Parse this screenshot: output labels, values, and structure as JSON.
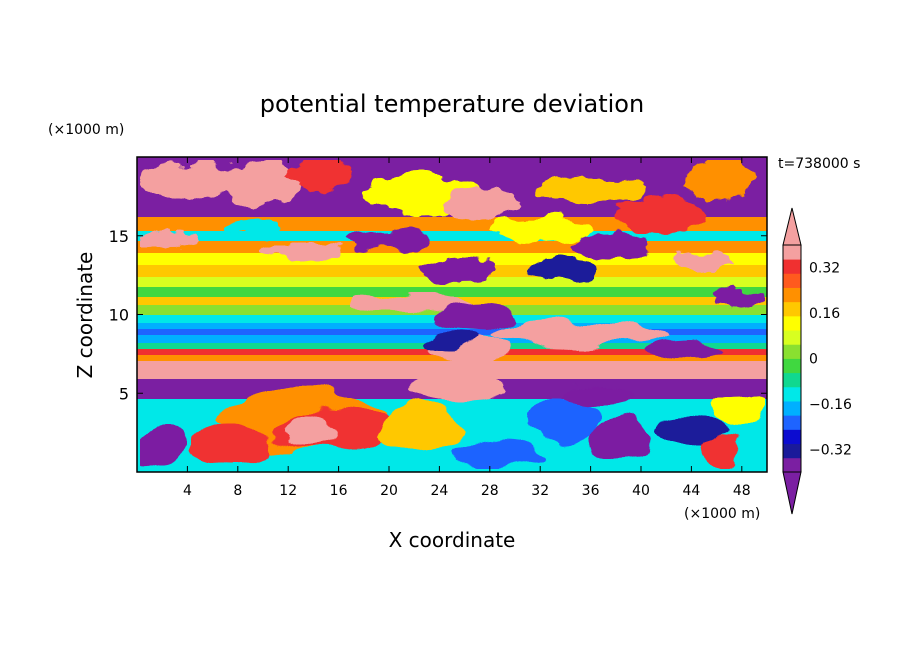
{
  "chart_data": {
    "type": "heatmap",
    "title": "potential temperature deviation",
    "xlabel": "X coordinate",
    "ylabel": "Z coordinate",
    "x_unit": "(×1000 m)",
    "y_unit": "(×1000 m)",
    "time_label": "t=738000 s",
    "xlim": [
      0,
      50
    ],
    "ylim": [
      0,
      20
    ],
    "x_ticks": [
      4,
      8,
      12,
      16,
      20,
      24,
      28,
      32,
      36,
      40,
      44,
      48
    ],
    "y_ticks": [
      5,
      10,
      15
    ],
    "colorbar": {
      "levels": [
        -0.4,
        -0.36,
        -0.32,
        -0.28,
        -0.24,
        -0.2,
        -0.16,
        -0.12,
        -0.08,
        -0.04,
        0,
        0.04,
        0.08,
        0.12,
        0.16,
        0.2,
        0.24,
        0.28,
        0.32,
        0.36,
        0.4
      ],
      "tick_labels": [
        {
          "value": 0.32,
          "label": "0.32"
        },
        {
          "value": 0.16,
          "label": "0.16"
        },
        {
          "value": 0,
          "label": "0"
        },
        {
          "value": -0.16,
          "label": "−0.16"
        },
        {
          "value": -0.32,
          "label": "−0.32"
        }
      ],
      "colors": [
        "#7b1fa2",
        "#1a1a9a",
        "#0c0cd0",
        "#1e64ff",
        "#00b0ff",
        "#00e8e8",
        "#10d890",
        "#40d840",
        "#8ae030",
        "#d8ff20",
        "#ffff00",
        "#ffc800",
        "#ff9000",
        "#ff5a1e",
        "#f03030",
        "#f4a0a0"
      ],
      "over_color": "#f4a0a0",
      "under_color": "#7b1fa2"
    }
  }
}
